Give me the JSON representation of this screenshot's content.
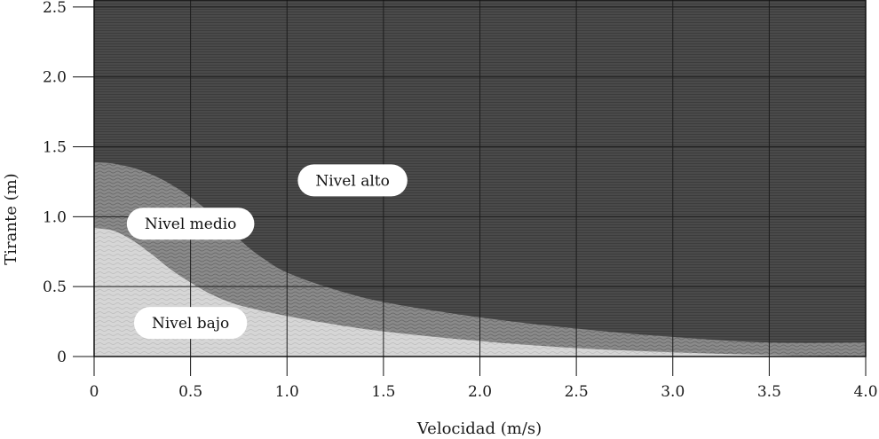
{
  "chart_data": {
    "type": "area",
    "title": "",
    "xlabel": "Velocidad (m/s)",
    "ylabel": "Tirante (m)",
    "xlim": [
      0,
      4.0
    ],
    "ylim": [
      0,
      2.55
    ],
    "x_ticks": [
      "0",
      "0.5",
      "1.0",
      "1.5",
      "2.0",
      "2.5",
      "3.0",
      "3.5",
      "4.0"
    ],
    "x_tick_values": [
      0,
      0.5,
      1.0,
      1.5,
      2.0,
      2.5,
      3.0,
      3.5,
      4.0
    ],
    "y_ticks": [
      "0",
      "0.5",
      "1.0",
      "1.5",
      "2.0",
      "2.5"
    ],
    "y_tick_values": [
      0,
      0.5,
      1.0,
      1.5,
      2.0,
      2.5
    ],
    "grid": true,
    "colors": {
      "alto": "#4a4a4a",
      "medio": "#8a8a8a",
      "bajo": "#d6d6d6"
    },
    "regions": [
      {
        "name": "Nivel bajo",
        "label": "Nivel bajo",
        "label_at": [
          0.5,
          0.24
        ],
        "upper_boundary": [
          {
            "x": 0,
            "y": 0.92
          },
          {
            "x": 0.1,
            "y": 0.9
          },
          {
            "x": 0.2,
            "y": 0.83
          },
          {
            "x": 0.3,
            "y": 0.73
          },
          {
            "x": 0.4,
            "y": 0.62
          },
          {
            "x": 0.5,
            "y": 0.53
          },
          {
            "x": 0.6,
            "y": 0.45
          },
          {
            "x": 0.7,
            "y": 0.39
          },
          {
            "x": 0.8,
            "y": 0.35
          },
          {
            "x": 1.0,
            "y": 0.29
          },
          {
            "x": 1.2,
            "y": 0.24
          },
          {
            "x": 1.5,
            "y": 0.18
          },
          {
            "x": 2.0,
            "y": 0.11
          },
          {
            "x": 2.5,
            "y": 0.06
          },
          {
            "x": 3.0,
            "y": 0.03
          },
          {
            "x": 3.5,
            "y": 0.01
          },
          {
            "x": 4.0,
            "y": 0.0
          }
        ]
      },
      {
        "name": "Nivel medio",
        "label": "Nivel medio",
        "label_at": [
          0.5,
          0.95
        ],
        "upper_boundary": [
          {
            "x": 0,
            "y": 1.39
          },
          {
            "x": 0.1,
            "y": 1.38
          },
          {
            "x": 0.2,
            "y": 1.35
          },
          {
            "x": 0.3,
            "y": 1.3
          },
          {
            "x": 0.4,
            "y": 1.23
          },
          {
            "x": 0.5,
            "y": 1.14
          },
          {
            "x": 0.6,
            "y": 1.03
          },
          {
            "x": 0.7,
            "y": 0.91
          },
          {
            "x": 0.8,
            "y": 0.78
          },
          {
            "x": 0.9,
            "y": 0.68
          },
          {
            "x": 1.0,
            "y": 0.6
          },
          {
            "x": 1.2,
            "y": 0.5
          },
          {
            "x": 1.5,
            "y": 0.39
          },
          {
            "x": 2.0,
            "y": 0.28
          },
          {
            "x": 2.5,
            "y": 0.2
          },
          {
            "x": 3.0,
            "y": 0.14
          },
          {
            "x": 3.5,
            "y": 0.1
          },
          {
            "x": 4.0,
            "y": 0.1
          }
        ]
      },
      {
        "name": "Nivel alto",
        "label": "Nivel alto",
        "label_at": [
          1.34,
          1.26
        ],
        "upper_boundary": [
          {
            "x": 0,
            "y": 2.55
          },
          {
            "x": 4.0,
            "y": 2.55
          }
        ]
      }
    ]
  }
}
